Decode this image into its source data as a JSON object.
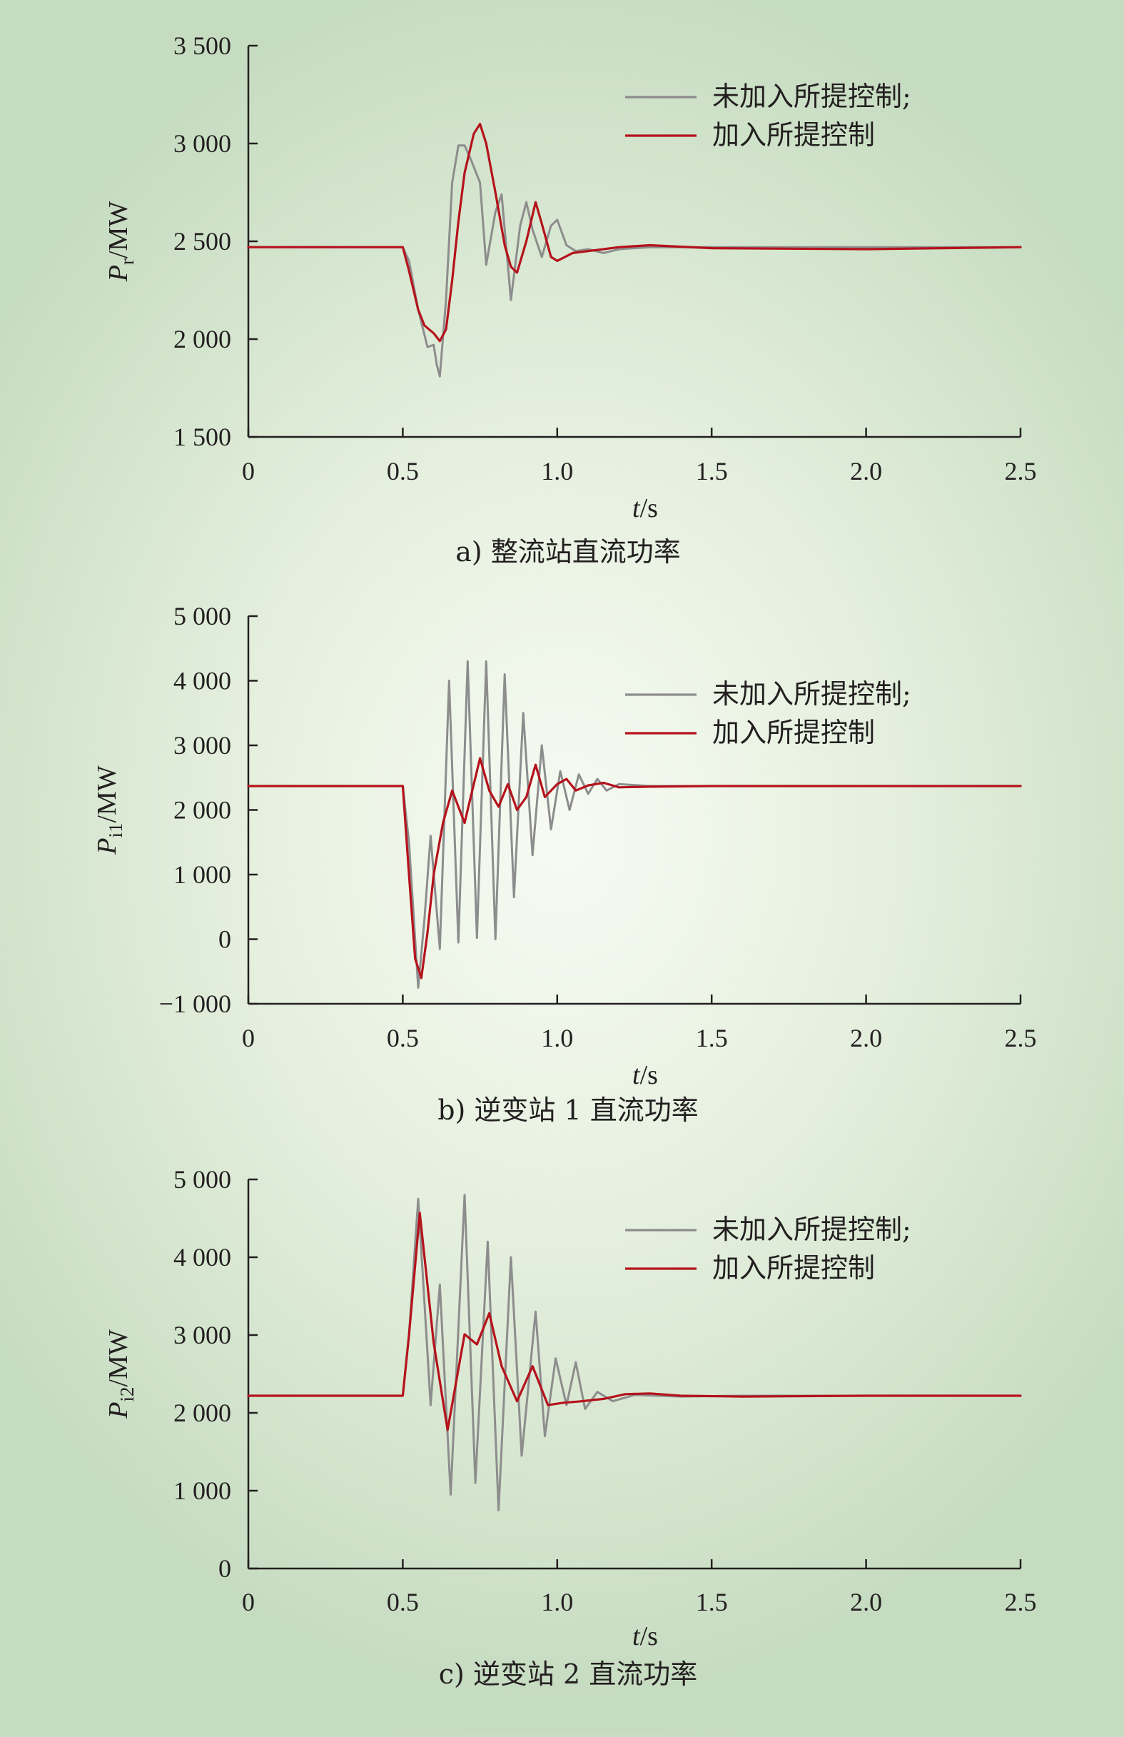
{
  "colors": {
    "uncontrolled": "#8d8d8d",
    "controlled": "#b5121b",
    "axis": "#231f20"
  },
  "chart_data": [
    {
      "type": "line",
      "caption": "a) 整流站直流功率",
      "ylabel": {
        "symbol": "P",
        "subscript": "r",
        "unit": "/MW"
      },
      "xlabel": {
        "symbol": "t",
        "unit": "/s"
      },
      "xlim": [
        0,
        2.5
      ],
      "ylim": [
        1500,
        3500
      ],
      "xticks": [
        0,
        0.5,
        1.0,
        1.5,
        2.0,
        2.5
      ],
      "xtick_labels": [
        "0",
        "0.5",
        "1.0",
        "1.5",
        "2.0",
        "2.5"
      ],
      "yticks": [
        1500,
        2000,
        2500,
        3000,
        3500
      ],
      "ytick_labels": [
        "1 500",
        "2 000",
        "2 500",
        "3 000",
        "3 500"
      ],
      "legend": {
        "position": "top-right"
      },
      "series": [
        {
          "name": "未加入所提控制;",
          "color_key": "uncontrolled",
          "x": [
            0,
            0.5,
            0.52,
            0.55,
            0.58,
            0.6,
            0.61,
            0.62,
            0.64,
            0.66,
            0.68,
            0.7,
            0.72,
            0.75,
            0.77,
            0.8,
            0.82,
            0.85,
            0.88,
            0.9,
            0.92,
            0.95,
            0.98,
            1.0,
            1.03,
            1.06,
            1.1,
            1.15,
            1.2,
            1.3,
            1.5,
            2.0,
            2.5
          ],
          "y": [
            2470,
            2470,
            2400,
            2150,
            1960,
            1970,
            1870,
            1810,
            2200,
            2800,
            2990,
            2990,
            2920,
            2800,
            2380,
            2650,
            2740,
            2200,
            2580,
            2700,
            2560,
            2420,
            2580,
            2610,
            2480,
            2450,
            2460,
            2440,
            2460,
            2470,
            2470,
            2470,
            2470
          ]
        },
        {
          "name": "加入所提控制",
          "color_key": "controlled",
          "x": [
            0,
            0.5,
            0.52,
            0.55,
            0.57,
            0.6,
            0.62,
            0.64,
            0.66,
            0.68,
            0.7,
            0.73,
            0.75,
            0.77,
            0.8,
            0.83,
            0.85,
            0.87,
            0.9,
            0.93,
            0.95,
            0.98,
            1.0,
            1.05,
            1.1,
            1.15,
            1.2,
            1.3,
            1.5,
            2.0,
            2.5
          ],
          "y": [
            2470,
            2470,
            2350,
            2150,
            2070,
            2030,
            1990,
            2050,
            2300,
            2600,
            2850,
            3050,
            3100,
            3000,
            2750,
            2480,
            2370,
            2340,
            2500,
            2700,
            2590,
            2420,
            2400,
            2440,
            2450,
            2460,
            2470,
            2480,
            2465,
            2460,
            2470
          ]
        }
      ]
    },
    {
      "type": "line",
      "caption": "b) 逆变站 1 直流功率",
      "ylabel": {
        "symbol": "P",
        "subscript": "i1",
        "unit": "/MW"
      },
      "xlabel": {
        "symbol": "t",
        "unit": "/s"
      },
      "xlim": [
        0,
        2.5
      ],
      "ylim": [
        -1000,
        5000
      ],
      "xticks": [
        0,
        0.5,
        1.0,
        1.5,
        2.0,
        2.5
      ],
      "xtick_labels": [
        "0",
        "0.5",
        "1.0",
        "1.5",
        "2.0",
        "2.5"
      ],
      "yticks": [
        -1000,
        0,
        1000,
        2000,
        3000,
        4000,
        5000
      ],
      "ytick_labels": [
        "−1 000",
        "0",
        "1 000",
        "2 000",
        "3 000",
        "4 000",
        "5 000"
      ],
      "legend": {
        "position": "top-right"
      },
      "series": [
        {
          "name": "未加入所提控制;",
          "color_key": "uncontrolled",
          "x": [
            0,
            0.5,
            0.52,
            0.55,
            0.57,
            0.59,
            0.62,
            0.65,
            0.68,
            0.71,
            0.74,
            0.77,
            0.8,
            0.83,
            0.86,
            0.89,
            0.92,
            0.95,
            0.98,
            1.01,
            1.04,
            1.07,
            1.1,
            1.13,
            1.16,
            1.2,
            1.3,
            1.5,
            2.0,
            2.5
          ],
          "y": [
            2370,
            2370,
            1500,
            -750,
            300,
            1600,
            -150,
            4000,
            -50,
            4300,
            20,
            4300,
            0,
            4100,
            650,
            3500,
            1300,
            3000,
            1700,
            2600,
            2000,
            2550,
            2250,
            2480,
            2300,
            2400,
            2370,
            2370,
            2370,
            2370
          ]
        },
        {
          "name": "加入所提控制",
          "color_key": "controlled",
          "x": [
            0,
            0.5,
            0.52,
            0.54,
            0.56,
            0.58,
            0.6,
            0.63,
            0.66,
            0.7,
            0.72,
            0.75,
            0.78,
            0.81,
            0.84,
            0.87,
            0.9,
            0.93,
            0.96,
            1.0,
            1.03,
            1.06,
            1.1,
            1.15,
            1.2,
            1.3,
            1.5,
            2.0,
            2.5
          ],
          "y": [
            2370,
            2370,
            1000,
            -300,
            -600,
            100,
            1000,
            1800,
            2300,
            1800,
            2200,
            2800,
            2300,
            2050,
            2400,
            2000,
            2200,
            2700,
            2200,
            2400,
            2480,
            2300,
            2380,
            2420,
            2350,
            2360,
            2370,
            2370,
            2370
          ]
        }
      ]
    },
    {
      "type": "line",
      "caption": "c) 逆变站 2 直流功率",
      "ylabel": {
        "symbol": "P",
        "subscript": "i2",
        "unit": "/MW"
      },
      "xlabel": {
        "symbol": "t",
        "unit": "/s"
      },
      "xlim": [
        0,
        2.5
      ],
      "ylim": [
        0,
        5000
      ],
      "xticks": [
        0,
        0.5,
        1.0,
        1.5,
        2.0,
        2.5
      ],
      "xtick_labels": [
        "0",
        "0.5",
        "1.0",
        "1.5",
        "2.0",
        "2.5"
      ],
      "yticks": [
        0,
        1000,
        2000,
        3000,
        4000,
        5000
      ],
      "ytick_labels": [
        "0",
        "1 000",
        "2 000",
        "3 000",
        "4 000",
        "5 000"
      ],
      "legend": {
        "position": "top-right"
      },
      "series": [
        {
          "name": "未加入所提控制;",
          "color_key": "uncontrolled",
          "x": [
            0,
            0.5,
            0.52,
            0.55,
            0.59,
            0.62,
            0.655,
            0.7,
            0.735,
            0.775,
            0.81,
            0.85,
            0.885,
            0.93,
            0.96,
            0.995,
            1.03,
            1.06,
            1.09,
            1.13,
            1.18,
            1.25,
            1.4,
            1.6,
            2.0,
            2.5
          ],
          "y": [
            2220,
            2220,
            3000,
            4750,
            2100,
            3650,
            950,
            4800,
            1100,
            4200,
            750,
            4000,
            1450,
            3300,
            1700,
            2700,
            2100,
            2650,
            2050,
            2270,
            2150,
            2230,
            2210,
            2220,
            2220,
            2220
          ]
        },
        {
          "name": "加入所提控制",
          "color_key": "controlled",
          "x": [
            0,
            0.5,
            0.52,
            0.555,
            0.6,
            0.645,
            0.7,
            0.74,
            0.78,
            0.82,
            0.87,
            0.92,
            0.97,
            1.02,
            1.08,
            1.15,
            1.22,
            1.3,
            1.4,
            1.6,
            2.0,
            2.5
          ],
          "y": [
            2220,
            2220,
            3000,
            4570,
            2900,
            1780,
            3010,
            2880,
            3280,
            2600,
            2150,
            2600,
            2100,
            2130,
            2150,
            2180,
            2240,
            2250,
            2220,
            2210,
            2220,
            2220
          ]
        }
      ]
    }
  ]
}
